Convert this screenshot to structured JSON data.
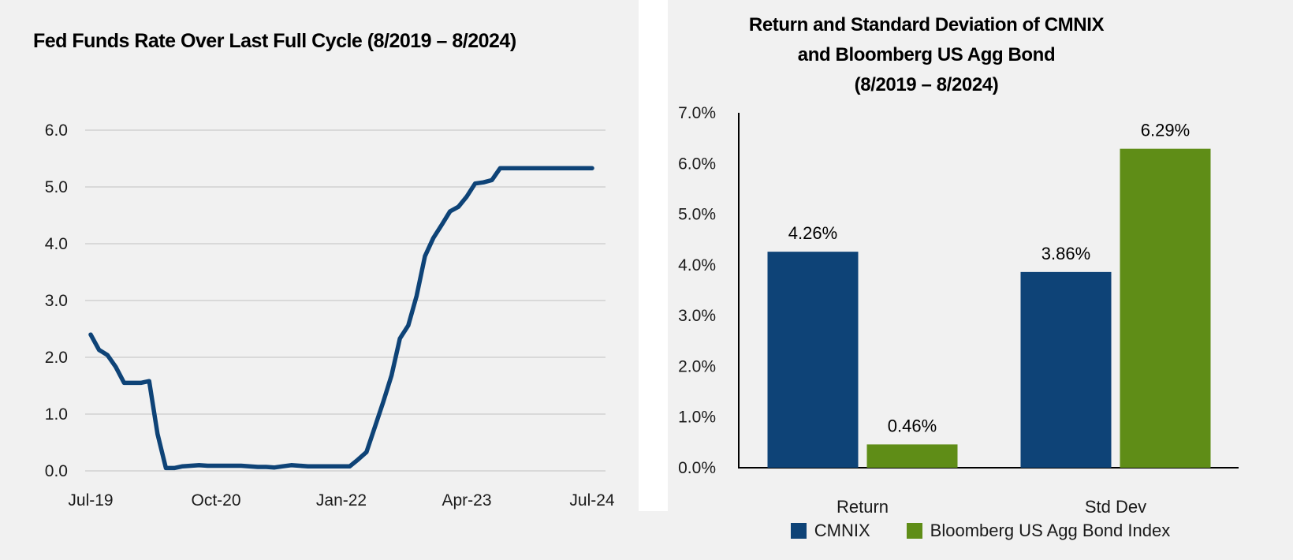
{
  "page": {
    "background": "#f1f1f1",
    "divider_color": "#ffffff",
    "text_color": "#1a1a1a"
  },
  "chart_data": [
    {
      "type": "line",
      "title": "Fed Funds Rate Over Last Full Cycle (8/2019 – 8/2024)",
      "series_name": "Fed Funds Rate",
      "line_color": "#0E4377",
      "grid_color": "#D9D9D9",
      "grid": true,
      "ylim": [
        0,
        6.3
      ],
      "y_tick_labels": [
        "0.0",
        "1.0",
        "2.0",
        "3.0",
        "4.0",
        "5.0",
        "6.0"
      ],
      "x_tick_labels": [
        "Jul-19",
        "Oct-20",
        "Jan-22",
        "Apr-23",
        "Jul-24"
      ],
      "x_tick_indices": [
        0,
        15,
        30,
        45,
        60
      ],
      "x": [
        "Jul-19",
        "Aug-19",
        "Sep-19",
        "Oct-19",
        "Nov-19",
        "Dec-19",
        "Jan-20",
        "Feb-20",
        "Mar-20",
        "Apr-20",
        "May-20",
        "Jun-20",
        "Jul-20",
        "Aug-20",
        "Sep-20",
        "Oct-20",
        "Nov-20",
        "Dec-20",
        "Jan-21",
        "Feb-21",
        "Mar-21",
        "Apr-21",
        "May-21",
        "Jun-21",
        "Jul-21",
        "Aug-21",
        "Sep-21",
        "Oct-21",
        "Nov-21",
        "Dec-21",
        "Jan-22",
        "Feb-22",
        "Mar-22",
        "Apr-22",
        "May-22",
        "Jun-22",
        "Jul-22",
        "Aug-22",
        "Sep-22",
        "Oct-22",
        "Nov-22",
        "Dec-22",
        "Jan-23",
        "Feb-23",
        "Mar-23",
        "Apr-23",
        "May-23",
        "Jun-23",
        "Jul-23",
        "Aug-23",
        "Sep-23",
        "Oct-23",
        "Nov-23",
        "Dec-23",
        "Jan-24",
        "Feb-24",
        "Mar-24",
        "Apr-24",
        "May-24",
        "Jun-24",
        "Jul-24"
      ],
      "values": [
        2.4,
        2.13,
        2.04,
        1.83,
        1.55,
        1.55,
        1.55,
        1.58,
        0.65,
        0.05,
        0.05,
        0.08,
        0.09,
        0.1,
        0.09,
        0.09,
        0.09,
        0.09,
        0.09,
        0.08,
        0.07,
        0.07,
        0.06,
        0.08,
        0.1,
        0.09,
        0.08,
        0.08,
        0.08,
        0.08,
        0.08,
        0.08,
        0.2,
        0.33,
        0.77,
        1.21,
        1.68,
        2.33,
        2.56,
        3.08,
        3.78,
        4.1,
        4.33,
        4.57,
        4.65,
        4.83,
        5.06,
        5.08,
        5.12,
        5.33,
        5.33,
        5.33,
        5.33,
        5.33,
        5.33,
        5.33,
        5.33,
        5.33,
        5.33,
        5.33,
        5.33
      ]
    },
    {
      "type": "bar",
      "title_lines": [
        "Return and Standard Deviation of CMNIX",
        "and Bloomberg US Agg Bond",
        "(8/2019 – 8/2024)"
      ],
      "categories": [
        "Return",
        "Std Dev"
      ],
      "series": [
        {
          "name": "CMNIX",
          "color": "#0E4377",
          "values": [
            4.26,
            3.86
          ],
          "labels": [
            "4.26%",
            "3.86%"
          ]
        },
        {
          "name": "Bloomberg US Agg Bond Index",
          "color": "#5F8D17",
          "values": [
            0.46,
            6.29
          ],
          "labels": [
            "0.46%",
            "6.29%"
          ]
        }
      ],
      "ylim": [
        0,
        7
      ],
      "y_tick_labels": [
        "0.0%",
        "1.0%",
        "2.0%",
        "3.0%",
        "4.0%",
        "5.0%",
        "6.0%",
        "7.0%"
      ],
      "grid": false,
      "axis_color": "#000000",
      "legend_position": "bottom"
    }
  ]
}
